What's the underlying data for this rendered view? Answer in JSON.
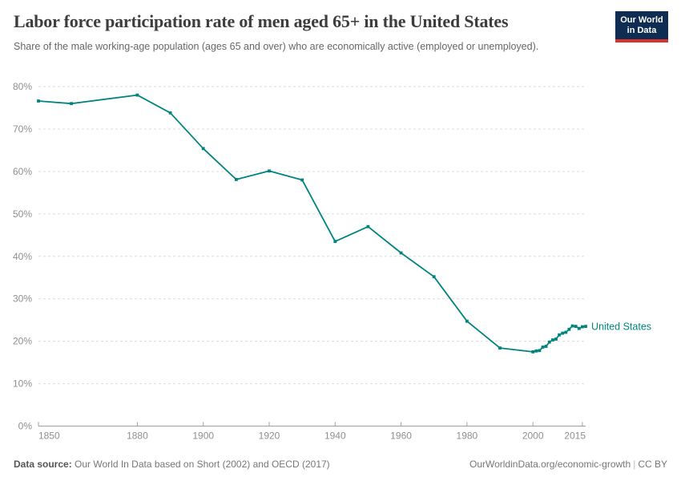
{
  "header": {
    "title": "Labor force participation rate of men aged 65+ in the United States",
    "subtitle": "Share of the male working-age population (ages 65 and over) who are economically active (employed or unemployed).",
    "logo": {
      "line1": "Our World",
      "line2": "in Data",
      "bg_color": "#0f2d52",
      "accent_color": "#d8352a"
    }
  },
  "chart_data": {
    "type": "line",
    "title": "Labor force participation rate of men aged 65+ in the United States",
    "xlabel": "",
    "ylabel": "",
    "xlim": [
      1850,
      2016
    ],
    "ylim": [
      0,
      80
    ],
    "grid": "horizontal-dashed",
    "legend_position": "end-of-line",
    "xticks": [
      1850,
      1880,
      1900,
      1920,
      1940,
      1960,
      1980,
      2000,
      2015
    ],
    "yticks": [
      0,
      10,
      20,
      30,
      40,
      50,
      60,
      70,
      80
    ],
    "ytick_suffix": "%",
    "series": [
      {
        "name": "United States",
        "color": "#00847e",
        "points": [
          [
            1850,
            76.6
          ],
          [
            1860,
            76.0
          ],
          [
            1880,
            78.0
          ],
          [
            1890,
            73.8
          ],
          [
            1900,
            65.4
          ],
          [
            1910,
            58.1
          ],
          [
            1920,
            60.1
          ],
          [
            1930,
            58.0
          ],
          [
            1940,
            43.5
          ],
          [
            1950,
            47.0
          ],
          [
            1960,
            40.8
          ],
          [
            1970,
            35.2
          ],
          [
            1980,
            24.7
          ],
          [
            1990,
            18.4
          ],
          [
            2000,
            17.5
          ],
          [
            2001,
            17.7
          ],
          [
            2002,
            17.8
          ],
          [
            2003,
            18.6
          ],
          [
            2004,
            18.8
          ],
          [
            2005,
            19.8
          ],
          [
            2006,
            20.3
          ],
          [
            2007,
            20.5
          ],
          [
            2008,
            21.5
          ],
          [
            2009,
            21.9
          ],
          [
            2010,
            22.1
          ],
          [
            2011,
            22.8
          ],
          [
            2012,
            23.6
          ],
          [
            2013,
            23.5
          ],
          [
            2014,
            23.0
          ],
          [
            2015,
            23.4
          ],
          [
            2016,
            23.5
          ]
        ]
      }
    ]
  },
  "footer": {
    "source_label": "Data source:",
    "source_text": "Our World In Data based on Short (2002) and OECD (2017)",
    "url": "OurWorldinData.org/economic-growth",
    "separator": "|",
    "license": "CC BY"
  }
}
